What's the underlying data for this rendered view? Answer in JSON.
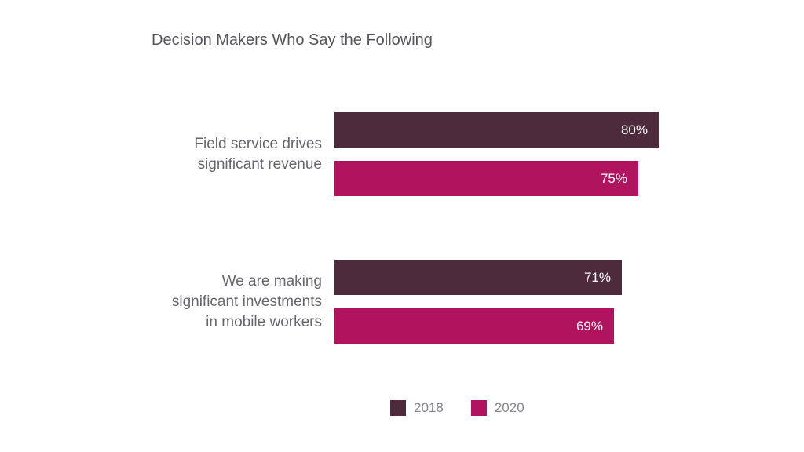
{
  "title": "Decision Makers Who Say the Following",
  "styles": {
    "background": "#FFFFFF",
    "title_color": "#55565B",
    "category_label_color": "#66676C",
    "legend_text_color": "#85868A",
    "value_text_color": "#FFFFFF",
    "series_2018_color": "#4E2B3A",
    "series_2020_color": "#B0145E"
  },
  "chart_data": {
    "type": "bar",
    "orientation": "horizontal",
    "title": "Decision Makers Who Say the Following",
    "unit": "%",
    "categories": [
      "Field service drives\nsignificant revenue",
      "We are making\nsignificant investments\nin mobile workers"
    ],
    "series": [
      {
        "name": "2018",
        "color": "#4E2B3A",
        "values": [
          80,
          71
        ]
      },
      {
        "name": "2020",
        "color": "#B0145E",
        "values": [
          75,
          69
        ]
      }
    ],
    "xlim": [
      0,
      100
    ],
    "value_labels": "inside-end",
    "grid": false,
    "legend_position": "bottom"
  },
  "legend": {
    "items": [
      {
        "label": "2018",
        "color": "#4E2B3A"
      },
      {
        "label": "2020",
        "color": "#B0145E"
      }
    ]
  }
}
